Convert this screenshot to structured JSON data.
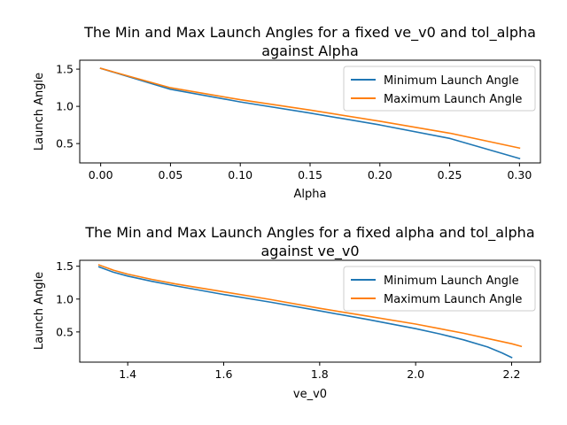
{
  "chart_data": [
    {
      "type": "line",
      "title": [
        "The Min and Max Launch Angles for a fixed ve_v0 and tol_alpha",
        "against Alpha"
      ],
      "xlabel": "Alpha",
      "ylabel": "Launch Angle",
      "xlim": [
        -0.015,
        0.315
      ],
      "ylim": [
        0.24,
        1.62
      ],
      "xticks": [
        0.0,
        0.05,
        0.1,
        0.15,
        0.2,
        0.25,
        0.3
      ],
      "xtick_labels": [
        "0.00",
        "0.05",
        "0.10",
        "0.15",
        "0.20",
        "0.25",
        "0.30"
      ],
      "yticks": [
        0.5,
        1.0,
        1.5
      ],
      "ytick_labels": [
        "0.5",
        "1.0",
        "1.5"
      ],
      "legend": "top-right",
      "grid": false,
      "series": [
        {
          "name": "Minimum Launch Angle",
          "color": "#1f77b4",
          "x": [
            0.0,
            0.05,
            0.1,
            0.15,
            0.2,
            0.25,
            0.3
          ],
          "y": [
            1.51,
            1.23,
            1.06,
            0.91,
            0.75,
            0.57,
            0.3
          ]
        },
        {
          "name": "Maximum Launch Angle",
          "color": "#ff7f0e",
          "x": [
            0.0,
            0.05,
            0.1,
            0.15,
            0.2,
            0.25,
            0.3
          ],
          "y": [
            1.51,
            1.25,
            1.09,
            0.95,
            0.8,
            0.64,
            0.44
          ]
        }
      ]
    },
    {
      "type": "line",
      "title": [
        "The Min and Max Launch Angles for a fixed alpha and tol_alpha",
        "against ve_v0"
      ],
      "xlabel": "ve_v0",
      "ylabel": "Launch Angle",
      "xlim": [
        1.3,
        2.26
      ],
      "ylim": [
        0.04,
        1.59
      ],
      "xticks": [
        1.4,
        1.6,
        1.8,
        2.0,
        2.2
      ],
      "xtick_labels": [
        "1.4",
        "1.6",
        "1.8",
        "2.0",
        "2.2"
      ],
      "yticks": [
        0.5,
        1.0,
        1.5
      ],
      "ytick_labels": [
        "0.5",
        "1.0",
        "1.5"
      ],
      "legend": "top-right",
      "grid": false,
      "series": [
        {
          "name": "Minimum Launch Angle",
          "color": "#1f77b4",
          "x": [
            1.34,
            1.37,
            1.4,
            1.45,
            1.5,
            1.6,
            1.7,
            1.8,
            1.9,
            2.0,
            2.05,
            2.1,
            2.15,
            2.18,
            2.2
          ],
          "y": [
            1.49,
            1.41,
            1.35,
            1.27,
            1.2,
            1.07,
            0.95,
            0.82,
            0.69,
            0.55,
            0.47,
            0.38,
            0.27,
            0.18,
            0.11
          ]
        },
        {
          "name": "Maximum Launch Angle",
          "color": "#ff7f0e",
          "x": [
            1.34,
            1.37,
            1.4,
            1.45,
            1.5,
            1.6,
            1.7,
            1.8,
            1.9,
            2.0,
            2.05,
            2.1,
            2.15,
            2.2,
            2.22
          ],
          "y": [
            1.52,
            1.44,
            1.38,
            1.3,
            1.23,
            1.11,
            0.99,
            0.86,
            0.74,
            0.62,
            0.55,
            0.48,
            0.4,
            0.32,
            0.28
          ]
        }
      ]
    }
  ]
}
